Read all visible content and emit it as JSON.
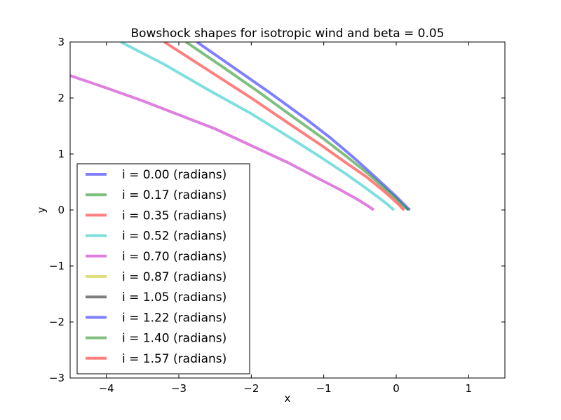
{
  "chart_data": {
    "type": "line",
    "title": "Bowshock shapes for isotropic wind and beta = 0.05",
    "xlabel": "x",
    "ylabel": "y",
    "xlim": [
      -4.5,
      1.5
    ],
    "ylim": [
      -3,
      3
    ],
    "xticks": [
      -4,
      -3,
      -2,
      -1,
      0,
      1
    ],
    "yticks": [
      -3,
      -2,
      -1,
      0,
      1,
      2,
      3
    ],
    "xtick_labels": [
      "−4",
      "−3",
      "−2",
      "−1",
      "0",
      "1"
    ],
    "ytick_labels": [
      "−3",
      "−2",
      "−1",
      "0",
      "1",
      "2",
      "3"
    ],
    "grid": false,
    "legend_position": "lower-left",
    "line_alpha": 0.5,
    "series": [
      {
        "name": "i = 0.00 (radians)",
        "color": "#0000ff",
        "x": [
          -2.75,
          -2.25,
          -1.75,
          -1.25,
          -0.9,
          -0.6,
          -0.35,
          -0.15,
          0.0,
          0.1,
          0.16,
          0.19
        ],
        "y": [
          3.0,
          2.55,
          2.1,
          1.63,
          1.28,
          0.95,
          0.66,
          0.42,
          0.24,
          0.11,
          0.03,
          0.0
        ]
      },
      {
        "name": "i = 0.17 (radians)",
        "color": "#008000",
        "x": [
          -2.9,
          -2.4,
          -1.9,
          -1.4,
          -1.0,
          -0.65,
          -0.4,
          -0.18,
          -0.02,
          0.08,
          0.14,
          0.17
        ],
        "y": [
          3.0,
          2.56,
          2.11,
          1.64,
          1.27,
          0.92,
          0.66,
          0.41,
          0.23,
          0.1,
          0.03,
          0.0
        ]
      },
      {
        "name": "i = 0.35 (radians)",
        "color": "#ff0000",
        "x": [
          -3.2,
          -2.6,
          -2.0,
          -1.5,
          -1.05,
          -0.7,
          -0.42,
          -0.2,
          -0.05,
          0.04,
          0.09,
          0.11
        ],
        "y": [
          3.0,
          2.5,
          2.0,
          1.56,
          1.17,
          0.85,
          0.6,
          0.37,
          0.2,
          0.09,
          0.02,
          0.0
        ]
      },
      {
        "name": "i = 0.52 (radians)",
        "color": "#00bfbf",
        "x": [
          -3.8,
          -3.2,
          -2.6,
          -2.0,
          -1.5,
          -1.05,
          -0.7,
          -0.45,
          -0.25,
          -0.12,
          -0.05,
          -0.03
        ],
        "y": [
          3.0,
          2.6,
          2.15,
          1.72,
          1.32,
          0.95,
          0.65,
          0.42,
          0.23,
          0.1,
          0.02,
          0.0
        ]
      },
      {
        "name": "i = 0.70 (radians)",
        "color": "#bf00bf",
        "x": [
          -4.5,
          -4.0,
          -3.5,
          -3.0,
          -2.5,
          -2.0,
          -1.5,
          -1.1,
          -0.8,
          -0.55,
          -0.4,
          -0.33,
          -0.31
        ],
        "y": [
          2.4,
          2.18,
          1.95,
          1.7,
          1.45,
          1.15,
          0.85,
          0.58,
          0.38,
          0.2,
          0.08,
          0.02,
          0.0
        ]
      },
      {
        "name": "i = 0.87 (radians)",
        "color": "#bfbf00",
        "x": [],
        "y": []
      },
      {
        "name": "i = 1.05 (radians)",
        "color": "#000000",
        "x": [],
        "y": []
      },
      {
        "name": "i = 1.22 (radians)",
        "color": "#0000ff",
        "x": [],
        "y": []
      },
      {
        "name": "i = 1.40 (radians)",
        "color": "#008000",
        "x": [],
        "y": []
      },
      {
        "name": "i = 1.57 (radians)",
        "color": "#ff0000",
        "x": [],
        "y": []
      }
    ]
  }
}
